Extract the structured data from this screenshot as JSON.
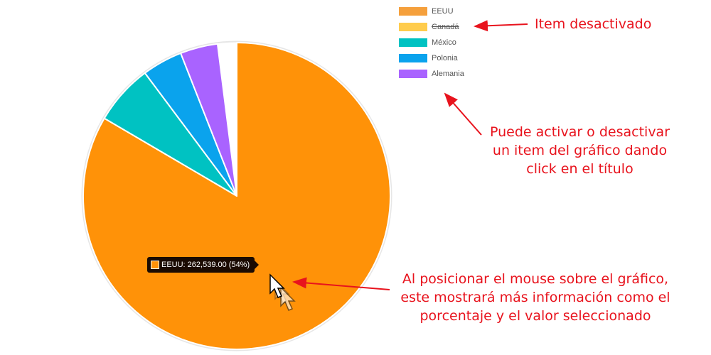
{
  "chart_data": {
    "type": "pie",
    "slices": [
      {
        "label": "EEUU",
        "value": 262539.0,
        "percent": 54,
        "color": "#ff9208",
        "enabled": true
      },
      {
        "label": "Canadá",
        "value": null,
        "color": "#ffcc4d",
        "enabled": false
      },
      {
        "label": "México",
        "value": null,
        "color": "#00c2c2",
        "enabled": true
      },
      {
        "label": "Polonia",
        "value": null,
        "color": "#0aa3ed",
        "enabled": true
      },
      {
        "label": "Alemania",
        "value": null,
        "color": "#a963ff",
        "enabled": true
      }
    ],
    "visible_shares": [
      0.8345,
      0.0,
      0.0635,
      0.0425,
      0.0395
    ],
    "legend": {
      "placement": "top-right",
      "items": [
        {
          "label": "EEUU",
          "color": "#f5a03c",
          "disabled": false
        },
        {
          "label": "Canadá",
          "color": "#ffcc4d",
          "disabled": true
        },
        {
          "label": "México",
          "color": "#00c2c2",
          "disabled": false
        },
        {
          "label": "Polonia",
          "color": "#0aa3ed",
          "disabled": false
        },
        {
          "label": "Alemania",
          "color": "#a963ff",
          "disabled": false
        }
      ]
    },
    "tooltip": {
      "text": "EEUU: 262,539.00 (54%)",
      "color": "#ff9208"
    }
  },
  "annotations": {
    "item_disabled": "Item desactivado",
    "toggle_hint": [
      "Puede activar o desactivar",
      "un item del gráfico dando",
      "click en el título"
    ],
    "hover_hint": [
      "Al posicionar el mouse sobre el gráfico,",
      "este mostrará más información como el",
      "porcentaje y el valor seleccionado"
    ],
    "color": "#e8131d"
  },
  "colors": {
    "tooltip_bg": "#1b0b02",
    "slice_border": "#ffffff"
  }
}
